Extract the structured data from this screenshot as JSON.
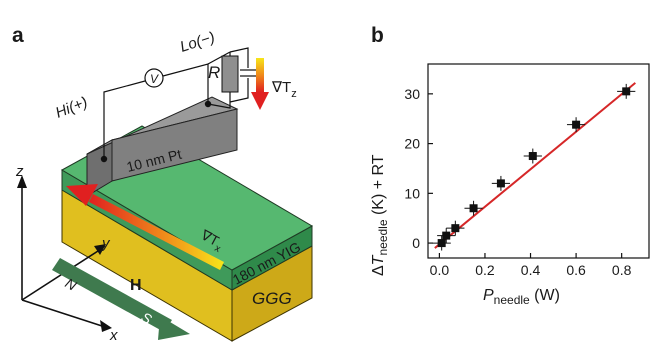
{
  "panel_a": {
    "label": "a",
    "hi_label": "Hi(+)",
    "lo_label": "Lo(−)",
    "voltmeter": "V",
    "resistor": "R",
    "grad_tz": "∇T",
    "grad_tz_sub": "z",
    "grad_tx": "∇T",
    "grad_tx_sub": "x",
    "pt_label": "10 nm Pt",
    "yig_label": "180 nm YIG",
    "ggg_label": "GGG",
    "h_label": "H",
    "axis_z": "z",
    "axis_y": "y",
    "axis_x": "x",
    "north": "N",
    "south": "S",
    "colors": {
      "pt": "#8a8a8a",
      "yig": "#4caf6a",
      "ggg": "#e3c21f",
      "magnet": "#3f7a4e",
      "grad_hot": "#e02020",
      "grad_cold": "#f7e61a"
    }
  },
  "panel_b": {
    "label": "b",
    "ylabel_delta": "Δ",
    "ylabel_t": "T",
    "ylabel_sub": "needle",
    "ylabel_rest": " (K) + RT",
    "xlabel_p": "P",
    "xlabel_sub": "needle",
    "xlabel_rest": " (W)"
  },
  "chart_data": {
    "type": "scatter",
    "x": [
      0.01,
      0.03,
      0.07,
      0.15,
      0.27,
      0.41,
      0.6,
      0.82
    ],
    "y": [
      0.0,
      1.5,
      3.0,
      7.0,
      12.0,
      17.5,
      23.8,
      30.5
    ],
    "xerr": 0.04,
    "yerr": 1.5,
    "fit": {
      "x": [
        -0.02,
        0.86
      ],
      "y": [
        -1.0,
        32.2
      ],
      "color": "#d62728"
    },
    "xlim": [
      -0.05,
      0.92
    ],
    "ylim": [
      -3,
      36
    ],
    "xticks": [
      "0.0",
      "0.2",
      "0.4",
      "0.6",
      "0.8"
    ],
    "yticks": [
      "0",
      "10",
      "20",
      "30"
    ],
    "grid": false
  }
}
